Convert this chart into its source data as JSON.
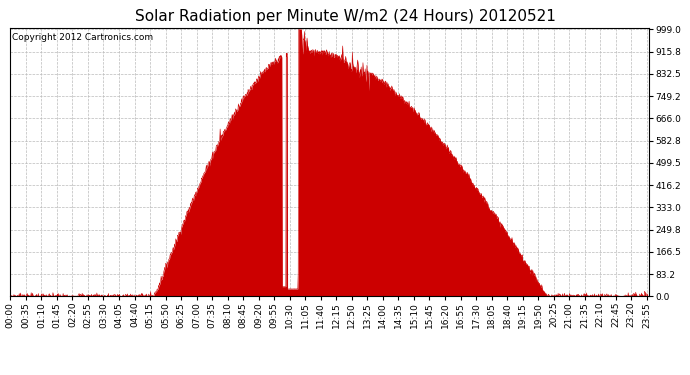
{
  "title": "Solar Radiation per Minute W/m2 (24 Hours) 20120521",
  "copyright_text": "Copyright 2012 Cartronics.com",
  "background_color": "#ffffff",
  "plot_bg_color": "#ffffff",
  "fill_color": "#cc0000",
  "line_color": "#cc0000",
  "dashed_line_color": "#dd0000",
  "grid_color": "#bbbbbb",
  "y_ticks": [
    0.0,
    83.2,
    166.5,
    249.8,
    333.0,
    416.2,
    499.5,
    582.8,
    666.0,
    749.2,
    832.5,
    915.8,
    999.0
  ],
  "y_min": 0.0,
  "y_max": 999.0,
  "total_minutes": 1440,
  "title_fontsize": 11,
  "tick_fontsize": 6.5,
  "copyright_fontsize": 6.5
}
